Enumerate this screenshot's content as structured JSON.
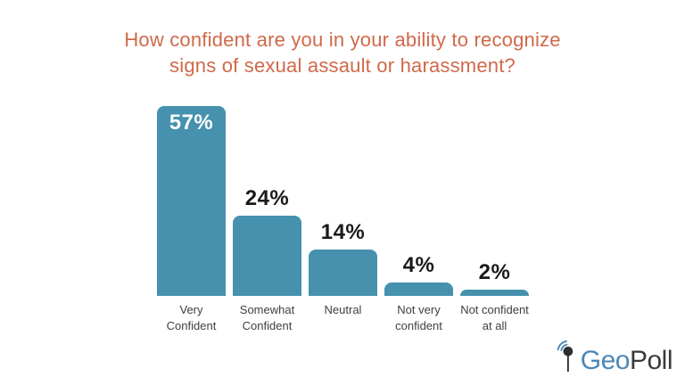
{
  "title": {
    "text": "How confident are you in your ability to recognize\nsigns of sexual assault or harassment?",
    "color": "#d0694a"
  },
  "chart_data": {
    "type": "bar",
    "title": "How confident are you in your ability to recognize signs of sexual assault or harassment?",
    "categories": [
      "Very\nConfident",
      "Somewhat\nConfident",
      "Neutral",
      "Not very\nconfident",
      "Not confident\nat all"
    ],
    "values": [
      57,
      24,
      14,
      4,
      2
    ],
    "value_labels": [
      "57%",
      "24%",
      "14%",
      "4%",
      "2%"
    ],
    "value_label_positions": [
      "inside",
      "above",
      "above",
      "above",
      "above"
    ],
    "bar_color": "#4591ae",
    "value_color_inside": "#ffffff",
    "value_color_above": "#1a1a1a",
    "xlabel": "",
    "ylabel": "",
    "ylim": [
      0,
      60
    ],
    "grid": false,
    "legend": false
  },
  "logo": {
    "brand_first": "Geo",
    "brand_second": "Poll",
    "icon": "pin-signal-icon",
    "blue": "#4c87b7",
    "dark": "#3b3b3b"
  }
}
